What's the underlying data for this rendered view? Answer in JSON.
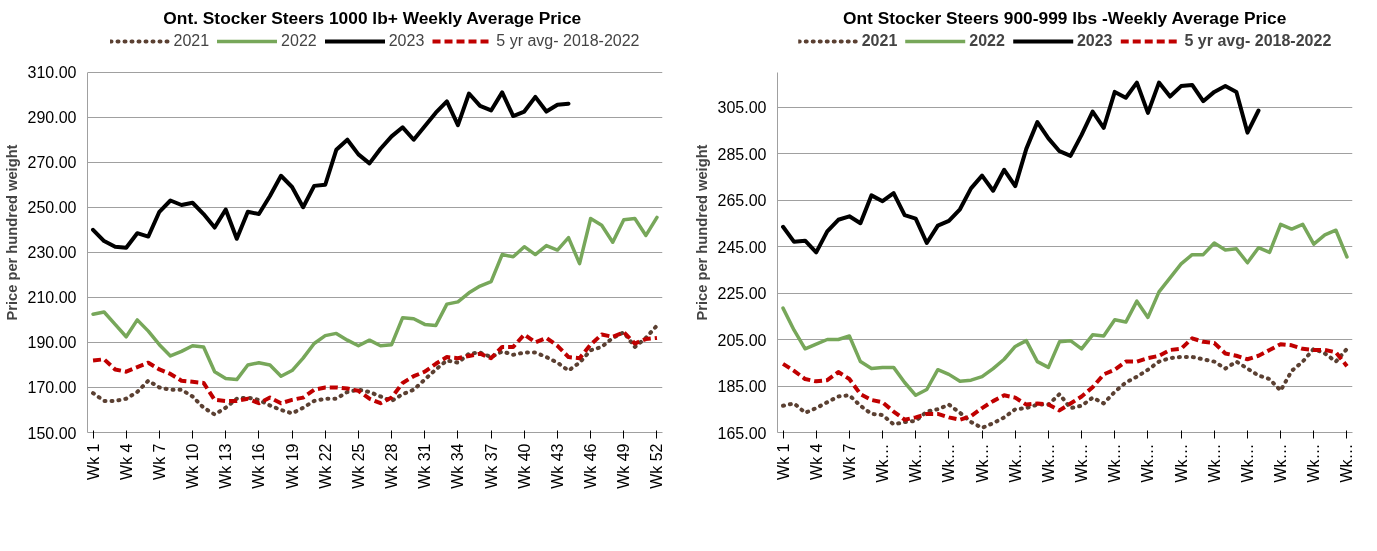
{
  "chart_data": [
    {
      "type": "line",
      "title": "Ont. Stocker Steers 1000 lb+  Weekly Average Price",
      "ylabel": "Price per hundred weight",
      "categories": [
        "Wk 1",
        null,
        null,
        "Wk 4",
        null,
        null,
        "Wk 7",
        null,
        null,
        "Wk 10",
        null,
        null,
        "Wk 13",
        null,
        null,
        "Wk 16",
        null,
        null,
        "Wk 19",
        null,
        null,
        "Wk 22",
        null,
        null,
        "Wk 25",
        null,
        null,
        "Wk 28",
        null,
        null,
        "Wk 31",
        null,
        null,
        "Wk 34",
        null,
        null,
        "Wk 37",
        null,
        null,
        "Wk 40",
        null,
        null,
        "Wk 43",
        null,
        null,
        "Wk 46",
        null,
        null,
        "Wk 49",
        null,
        null,
        "Wk 52"
      ],
      "ylim": [
        150,
        310
      ],
      "yticks": [
        {
          "value": 150,
          "label": "150.00"
        },
        {
          "value": 170,
          "label": "170.00"
        },
        {
          "value": 190,
          "label": "190.00"
        },
        {
          "value": 210,
          "label": "210.00"
        },
        {
          "value": 230,
          "label": "230.00"
        },
        {
          "value": 250,
          "label": "250.00"
        },
        {
          "value": 270,
          "label": "270.00"
        },
        {
          "value": 290,
          "label": "290.00"
        },
        {
          "value": 310,
          "label": "310.00"
        }
      ],
      "grid": "y",
      "legend": "top",
      "marker": "none",
      "series": [
        {
          "name": "2021",
          "color": "#5b4032",
          "line_style": "dotted",
          "values": [
            167.5,
            164,
            164,
            165,
            168,
            173,
            170,
            169,
            169,
            166,
            161,
            158,
            161,
            165,
            165.5,
            164.5,
            162,
            160,
            158.5,
            161,
            164,
            165,
            165,
            168,
            169,
            168,
            166,
            164,
            167,
            169,
            173.5,
            178,
            182,
            181,
            185,
            185.5,
            183.5,
            186,
            184.5,
            185.5,
            185.5,
            183.5,
            181,
            177.5,
            181,
            186.5,
            188,
            192,
            194.5,
            188,
            192,
            197.5
          ]
        },
        {
          "name": "2022",
          "color": "#77a75a",
          "line_style": "solid",
          "values": [
            202.5,
            203.5,
            198,
            192.5,
            200,
            195,
            189,
            184,
            186,
            188.5,
            188,
            177,
            174,
            173.5,
            180,
            181,
            180,
            175,
            177.5,
            183,
            189.5,
            193,
            194,
            191,
            188.5,
            191,
            188.5,
            189,
            201,
            200.5,
            198,
            197.5,
            207,
            208,
            212,
            215,
            217,
            229,
            228,
            232.5,
            229,
            233,
            231,
            236.5,
            225,
            245,
            242,
            234.5,
            244.5,
            245,
            237.5,
            245.5
          ]
        },
        {
          "name": "2023",
          "color": "#000000",
          "line_style": "solid",
          "values": [
            240,
            235,
            232.5,
            232,
            238.5,
            237,
            248,
            253,
            251,
            252,
            247,
            241,
            249,
            236,
            248,
            247,
            255,
            264,
            259,
            250,
            259.5,
            260,
            275.5,
            280,
            273.5,
            269.5,
            276,
            281.5,
            285.5,
            280,
            286,
            292,
            297,
            286.5,
            300.5,
            295,
            293,
            301,
            290.5,
            292.5,
            299,
            292.5,
            295.5,
            296,
            null,
            null,
            null,
            null,
            null,
            null,
            null,
            null
          ]
        },
        {
          "name": "5 yr avg- 2018-2022",
          "color": "#c00000",
          "line_style": "dashed",
          "values": [
            182,
            182.5,
            178,
            177,
            179,
            181,
            178,
            176,
            173,
            172.5,
            172,
            164.5,
            164,
            164,
            165,
            163,
            165.5,
            163,
            164.5,
            165.5,
            169,
            170,
            170,
            169.5,
            168.5,
            165,
            163,
            165.5,
            172,
            175,
            177,
            180.5,
            183.5,
            183,
            184,
            185,
            183,
            188,
            188,
            193.5,
            190,
            192,
            188.5,
            183.5,
            183,
            189,
            193.5,
            192.5,
            194.5,
            189.5,
            191.5,
            192
          ]
        }
      ]
    },
    {
      "type": "line",
      "title": "Ont Stocker Steers 900-999 lbs -Weekly Average Price",
      "ylabel": "Price per hundred weight",
      "categories": [
        "Wk 1",
        null,
        null,
        "Wk 4",
        null,
        null,
        "Wk 7",
        null,
        null,
        "Wk…",
        null,
        null,
        "Wk…",
        null,
        null,
        "Wk…",
        null,
        null,
        "Wk…",
        null,
        null,
        "Wk…",
        null,
        null,
        "Wk…",
        null,
        null,
        "Wk…",
        null,
        null,
        "Wk…",
        null,
        null,
        "Wk…",
        null,
        null,
        "Wk…",
        null,
        null,
        "Wk…",
        null,
        null,
        "Wk…",
        null,
        null,
        "Wk…",
        null,
        null,
        "Wk…",
        null,
        null,
        "Wk…"
      ],
      "ylim": [
        165,
        320
      ],
      "yticks": [
        {
          "value": 165,
          "label": "165.00"
        },
        {
          "value": 185,
          "label": "185.00"
        },
        {
          "value": 205,
          "label": "205.00"
        },
        {
          "value": 225,
          "label": "225.00"
        },
        {
          "value": 245,
          "label": "245.00"
        },
        {
          "value": 265,
          "label": "265.00"
        },
        {
          "value": 285,
          "label": "285.00"
        },
        {
          "value": 305,
          "label": "305.00"
        }
      ],
      "grid": "y",
      "legend": "top",
      "marker": "none",
      "series": [
        {
          "name": "2021",
          "color": "#5b4032",
          "line_style": "dotted",
          "values": [
            176.5,
            177.5,
            173.5,
            175.5,
            178,
            180.5,
            181,
            176.5,
            173,
            172.5,
            168.5,
            169.5,
            170,
            174,
            175,
            177,
            173.5,
            169.5,
            167,
            169,
            171.5,
            175,
            175.5,
            177,
            177,
            181.5,
            175.5,
            176.5,
            180,
            177.5,
            182.5,
            186.5,
            189,
            192,
            195.5,
            197,
            197.5,
            197.5,
            196.5,
            195.5,
            192.5,
            195.5,
            192.5,
            189.5,
            188,
            183,
            191.5,
            195.5,
            201,
            199,
            195.5,
            201
          ]
        },
        {
          "name": "2022",
          "color": "#77a75a",
          "line_style": "solid",
          "values": [
            218.5,
            209,
            201,
            203,
            205,
            205,
            206.5,
            195.5,
            192.5,
            193,
            193,
            186.5,
            181,
            183.5,
            192,
            190,
            187,
            187.5,
            189,
            192.5,
            196.5,
            202,
            204.5,
            195.5,
            193,
            204,
            204.5,
            201,
            207,
            206.5,
            213.5,
            212.5,
            221.5,
            214.5,
            225.5,
            231.5,
            237.5,
            241.5,
            241.5,
            246.5,
            243.5,
            244,
            238,
            244.5,
            242.5,
            254.5,
            252.5,
            254.5,
            246,
            250,
            252,
            240.5
          ]
        },
        {
          "name": "2023",
          "color": "#000000",
          "line_style": "solid",
          "values": [
            253.5,
            247,
            247.5,
            242.5,
            251.5,
            256.5,
            258,
            255,
            267,
            264.5,
            268,
            258.5,
            257,
            246.5,
            254,
            256,
            261,
            270,
            275.5,
            269,
            278,
            271,
            287,
            298.5,
            291.5,
            286,
            284,
            293,
            303,
            296,
            311.5,
            309,
            315.5,
            302.5,
            315.5,
            309.5,
            314,
            314.5,
            307.5,
            311.5,
            314,
            311.5,
            294,
            303.5,
            null,
            null,
            null,
            null,
            null,
            null,
            null,
            null
          ]
        },
        {
          "name": "5 yr avg- 2018-2022",
          "color": "#c00000",
          "line_style": "dashed",
          "values": [
            194.5,
            191.5,
            188,
            187,
            187.5,
            191,
            188,
            181.5,
            179,
            178,
            174,
            170.5,
            171.5,
            173,
            173,
            171.5,
            170.5,
            172,
            175.5,
            178.5,
            181,
            180,
            177,
            177.5,
            177,
            174.5,
            177.5,
            180.5,
            184.5,
            190,
            192,
            195.5,
            195.5,
            197,
            198,
            200.5,
            201,
            205.5,
            204,
            203.5,
            199,
            198,
            196.5,
            198,
            200.5,
            203,
            202.5,
            201,
            200.5,
            200.5,
            199.5,
            193.5
          ]
        }
      ]
    }
  ]
}
